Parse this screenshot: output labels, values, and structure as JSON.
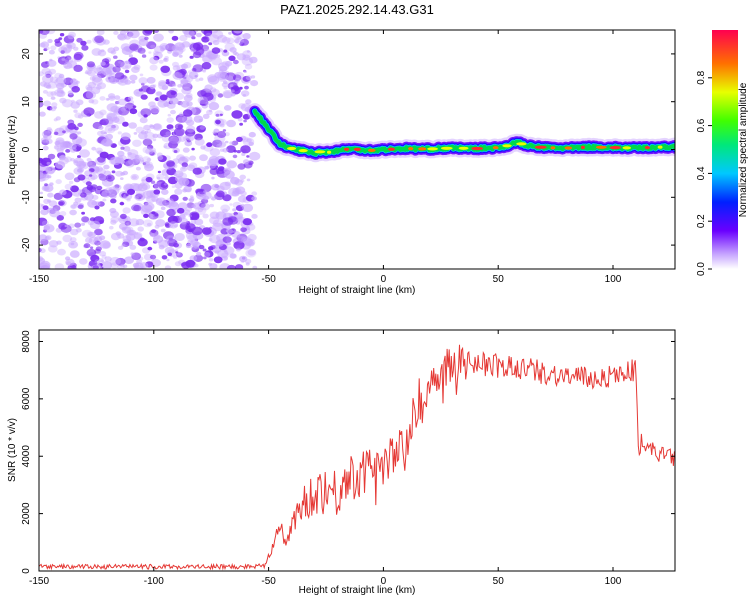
{
  "title": "PAZ1.2025.292.14.43.G31",
  "colors": {
    "line": "#e53935",
    "spectrum_trace_low": "#1a0dff",
    "spectrum_trace_mid": "#00d84a",
    "spectrum_trace_high": "#ff2b2b",
    "noise_dots": "#7b2cf0",
    "noise_dots_light": "#c9a8ff"
  },
  "chart_data": [
    {
      "id": "spectrogram",
      "type": "heatmap",
      "xlabel": "Height of straight line (km)",
      "ylabel": "Frequency (Hz)",
      "xlim": [
        -150,
        127
      ],
      "ylim": [
        -25,
        25
      ],
      "xticks": [
        -150,
        -100,
        -50,
        0,
        50,
        100
      ],
      "yticks": [
        -20,
        -10,
        0,
        10,
        20
      ],
      "noise_region_x": [
        -150,
        -56
      ],
      "trace": {
        "x": [
          -56,
          -52,
          -48,
          -45,
          -42,
          -38,
          -34,
          -30,
          -27,
          -24,
          -20,
          -15,
          -10,
          -5,
          0,
          10,
          20,
          30,
          40,
          50,
          55,
          58,
          62,
          70,
          80,
          90,
          100,
          110,
          120,
          127
        ],
        "freq": [
          8,
          5.5,
          3,
          1.2,
          0.4,
          0,
          -0.3,
          -0.8,
          -0.4,
          -0.6,
          -0.2,
          0.1,
          0,
          -0.2,
          0,
          0.2,
          0.1,
          0.3,
          0.2,
          0.4,
          0.9,
          1.6,
          0.8,
          0.4,
          0.3,
          0.5,
          0.4,
          0.3,
          0.5,
          0.5
        ]
      },
      "colorbar": {
        "label": "Normalized spectral amplitude",
        "range": [
          0,
          1
        ],
        "ticks": [
          "0.0",
          "0.2",
          "0.4",
          "0.6",
          "0.8"
        ]
      }
    },
    {
      "id": "snr",
      "type": "line",
      "xlabel": "Height of straight line (km)",
      "ylabel": "SNR (10 * v/v)",
      "xlim": [
        -150,
        127
      ],
      "ylim": [
        0,
        8400
      ],
      "xticks": [
        -150,
        -100,
        -50,
        0,
        50,
        100
      ],
      "yticks": [
        0,
        2000,
        4000,
        6000,
        8000
      ],
      "series": [
        {
          "name": "SNR",
          "x": [
            -150,
            -60,
            -52,
            -49,
            -47,
            -45,
            -43,
            -40,
            -35,
            -30,
            -25,
            -20,
            -15,
            -10,
            -5,
            0,
            5,
            10,
            15,
            20,
            25,
            30,
            35,
            40,
            50,
            60,
            70,
            80,
            90,
            100,
            108,
            110,
            111,
            115,
            120,
            127
          ],
          "y": [
            150,
            150,
            200,
            700,
            1200,
            1600,
            1000,
            1400,
            2400,
            2700,
            2900,
            2700,
            3300,
            3300,
            3700,
            3700,
            4100,
            4500,
            5400,
            6400,
            7100,
            7200,
            7200,
            7300,
            7100,
            7100,
            6900,
            6800,
            6700,
            6800,
            7000,
            7000,
            4200,
            4300,
            4100,
            3900
          ],
          "noise_amplitude": [
            80,
            80,
            100,
            150,
            250,
            300,
            300,
            400,
            700,
            800,
            900,
            900,
            800,
            800,
            700,
            700,
            700,
            700,
            700,
            700,
            700,
            700,
            600,
            500,
            450,
            450,
            400,
            400,
            400,
            400,
            400,
            400,
            300,
            300,
            300,
            300
          ]
        }
      ]
    }
  ]
}
